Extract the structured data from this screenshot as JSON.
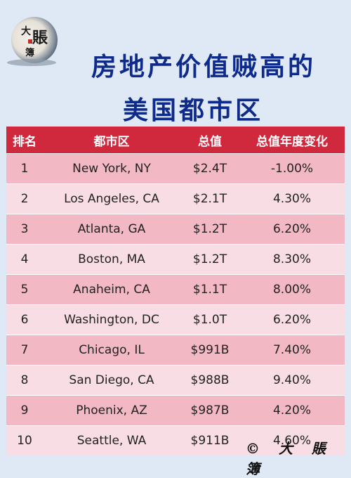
{
  "logo": {
    "chars": [
      "大",
      "賬",
      "簿"
    ]
  },
  "title": {
    "line1": "房地产价值贼高的",
    "line2": "美国都市区"
  },
  "table": {
    "headers": [
      "排名",
      "都市区",
      "总值",
      "总值年度变化"
    ],
    "rows": [
      {
        "rank": "1",
        "city": "New York, NY",
        "value": "$2.4T",
        "change": "-1.00%"
      },
      {
        "rank": "2",
        "city": "Los Angeles, CA",
        "value": "$2.1T",
        "change": "4.30%"
      },
      {
        "rank": "3",
        "city": "Atlanta, GA",
        "value": "$1.2T",
        "change": "6.20%"
      },
      {
        "rank": "4",
        "city": "Boston, MA",
        "value": "$1.2T",
        "change": "8.30%"
      },
      {
        "rank": "5",
        "city": "Anaheim, CA",
        "value": "$1.1T",
        "change": "8.00%"
      },
      {
        "rank": "6",
        "city": "Washington, DC",
        "value": "$1.0T",
        "change": "6.20%"
      },
      {
        "rank": "7",
        "city": "Chicago, IL",
        "value": "$991B",
        "change": "7.40%"
      },
      {
        "rank": "8",
        "city": "San Diego, CA",
        "value": "$988B",
        "change": "9.40%"
      },
      {
        "rank": "9",
        "city": "Phoenix, AZ",
        "value": "$987B",
        "change": "4.20%"
      },
      {
        "rank": "10",
        "city": "Seattle, WA",
        "value": "$911B",
        "change": "4.60%"
      }
    ]
  },
  "footer": {
    "text": "© 大 賬 簿"
  },
  "colors": {
    "background": "#dfe9f6",
    "title": "#0e2a8a",
    "header": "#d0283c",
    "row_dark": "#f2b8c4",
    "row_light": "#f9dde4"
  }
}
